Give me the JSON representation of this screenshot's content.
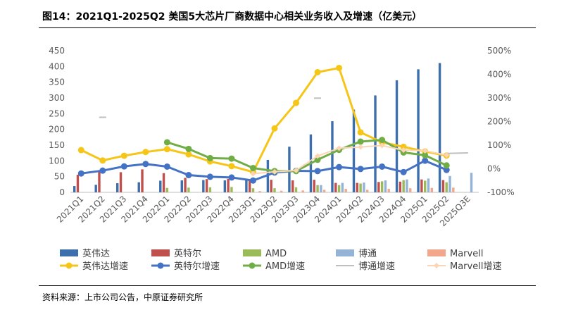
{
  "title": "图14：2021Q1-2025Q2 美国5大芯片厂商数据中心相关业务收入及增速（亿美元）",
  "source": "资料来源：上市公司公告，中原证券研究所",
  "colors": {
    "nvidia": "#3e6fad",
    "intel": "#c0504d",
    "amd": "#9bbb59",
    "broadcom": "#95b3d7",
    "marvell": "#f2a78c",
    "nvidia_growth": "#f5c518",
    "intel_growth": "#4472c4",
    "amd_growth": "#70ad47",
    "broadcom_growth": "#bfbfbf",
    "marvell_growth": "#fcd5b4"
  },
  "chart_data": {
    "type": "bar",
    "title": "2021Q1-2025Q2 美国5大芯片厂商数据中心相关业务收入及增速（亿美元）",
    "categories": [
      "2021Q1",
      "2021Q2",
      "2021Q3",
      "2021Q4",
      "2022Q1",
      "2022Q2",
      "2022Q3",
      "2022Q4",
      "2023Q1",
      "2023Q2",
      "2023Q3",
      "2023Q4",
      "2024Q1",
      "2024Q2",
      "2024Q3",
      "2024Q4",
      "2025Q1",
      "2025Q2",
      "2025Q3E"
    ],
    "y_left": {
      "min": 0,
      "max": 450,
      "ticks": [
        0,
        50,
        100,
        150,
        200,
        250,
        300,
        350,
        400,
        450
      ]
    },
    "y_right": {
      "min": -100,
      "max": 500,
      "ticks": [
        -100,
        0,
        100,
        200,
        300,
        400,
        500
      ],
      "tick_labels": [
        "-100%",
        "0%",
        "100%",
        "200%",
        "300%",
        "400%",
        "500%"
      ]
    },
    "series": [
      {
        "name": "英伟达",
        "kind": "bar",
        "color_key": "nvidia",
        "values": [
          20,
          24,
          29,
          32,
          37,
          38,
          39,
          38,
          43,
          103,
          145,
          184,
          226,
          263,
          308,
          356,
          391,
          411,
          null
        ]
      },
      {
        "name": "英特尔",
        "kind": "bar",
        "color_key": "intel",
        "values": [
          56,
          65,
          64,
          73,
          61,
          46,
          42,
          43,
          37,
          40,
          38,
          40,
          30,
          30,
          33,
          34,
          41,
          39,
          null
        ]
      },
      {
        "name": "AMD",
        "kind": "bar",
        "color_key": "amd",
        "values": [
          null,
          null,
          null,
          null,
          14,
          15,
          16,
          17,
          13,
          13,
          16,
          23,
          23,
          28,
          35,
          39,
          37,
          32,
          null
        ]
      },
      {
        "name": "博通",
        "kind": "bar",
        "color_key": "broadcom",
        "values": [
          null,
          null,
          null,
          null,
          null,
          null,
          null,
          null,
          null,
          null,
          null,
          23,
          30,
          31,
          38,
          41,
          44,
          52,
          62
        ]
      },
      {
        "name": "Marvell",
        "kind": "bar",
        "color_key": "marvell",
        "values": [
          null,
          null,
          null,
          null,
          null,
          null,
          null,
          null,
          4,
          5,
          6,
          8,
          11,
          8,
          11,
          13,
          14,
          15,
          null
        ]
      },
      {
        "name": "英伟达增速",
        "kind": "line",
        "axis": "right",
        "color_key": "nvidia_growth",
        "marker": "circle",
        "values": [
          79,
          35,
          55,
          71,
          83,
          61,
          31,
          11,
          -14,
          171,
          279,
          409,
          427,
          154,
          112,
          93,
          73,
          56,
          null
        ]
      },
      {
        "name": "英特尔增速",
        "kind": "line",
        "axis": "right",
        "color_key": "intel_growth",
        "marker": "circle",
        "values": [
          -20,
          -8,
          10,
          20,
          9,
          -27,
          -34,
          -37,
          -50,
          -16,
          -9,
          -10,
          7,
          -1,
          9,
          -14,
          34,
          -5,
          null
        ]
      },
      {
        "name": "AMD增速",
        "kind": "line",
        "axis": "right",
        "color_key": "amd_growth",
        "marker": "circle",
        "values": [
          null,
          null,
          null,
          null,
          112,
          84,
          45,
          43,
          3,
          -10,
          -10,
          38,
          80,
          115,
          122,
          69,
          57,
          14,
          null
        ]
      },
      {
        "name": "博通增速",
        "kind": "line",
        "axis": "right",
        "color_key": "broadcom_growth",
        "marker": "dash",
        "values": [
          null,
          218,
          null,
          null,
          null,
          null,
          null,
          null,
          null,
          null,
          null,
          299,
          null,
          null,
          null,
          null,
          null,
          65,
          67
        ]
      },
      {
        "name": "Marvell增速",
        "kind": "line",
        "axis": "right",
        "color_key": "marvell_growth",
        "marker": "diamond",
        "values": [
          null,
          null,
          null,
          null,
          null,
          null,
          null,
          null,
          -21,
          -13,
          -7,
          54,
          87,
          92,
          98,
          79,
          76,
          58,
          null
        ]
      }
    ],
    "legend": [
      [
        "英伟达",
        "英特尔",
        "AMD",
        "博通",
        "Marvell"
      ],
      [
        "英伟达增速",
        "英特尔增速",
        "AMD增速",
        "博通增速",
        "Marvell增速"
      ]
    ],
    "legend_position": "bottom"
  }
}
